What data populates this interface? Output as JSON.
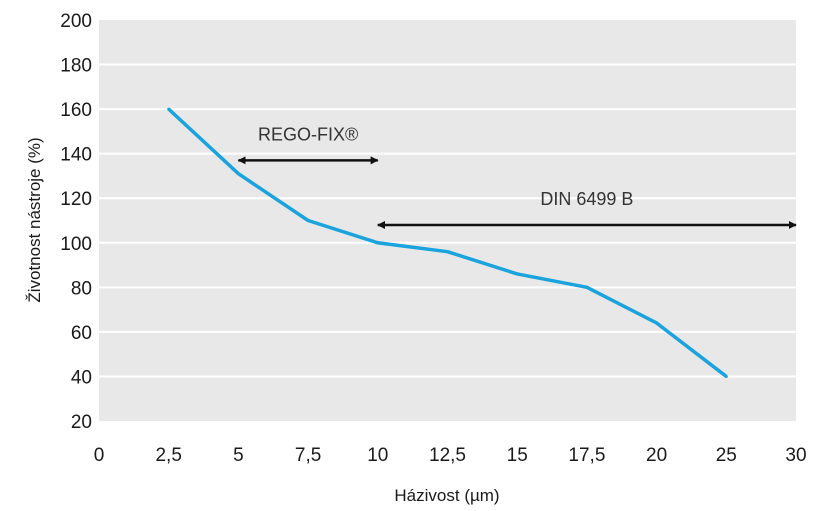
{
  "chart_data": {
    "type": "line",
    "xlabel": "Házivost (µm)",
    "ylabel": "Životnost nástroje (%)",
    "x_ticks": [
      "0",
      "2,5",
      "5",
      "7,5",
      "10",
      "12,5",
      "15",
      "17,5",
      "20",
      "25",
      "30"
    ],
    "y_ticks": [
      "20",
      "40",
      "60",
      "80",
      "100",
      "120",
      "140",
      "160",
      "180",
      "200"
    ],
    "ylim": [
      20,
      200
    ],
    "grid": "horizontal",
    "series": [
      {
        "x": [
          "2,5",
          "5",
          "7,5",
          "10",
          "12,5",
          "15",
          "17,5",
          "20",
          "25"
        ],
        "values": [
          160,
          131,
          110,
          100,
          96,
          86,
          80,
          64,
          40
        ]
      }
    ],
    "annotations": [
      {
        "text": "REGO-FIX®",
        "x_from": "5",
        "x_to": "10",
        "y": 137
      },
      {
        "text": "DIN 6499 B",
        "x_from": "10",
        "x_to": "30",
        "y": 108
      }
    ],
    "colors": {
      "line": "#1aa3dd",
      "plot_background": "#e8e8e8",
      "grid": "#ffffff",
      "arrow": "#111111"
    }
  }
}
